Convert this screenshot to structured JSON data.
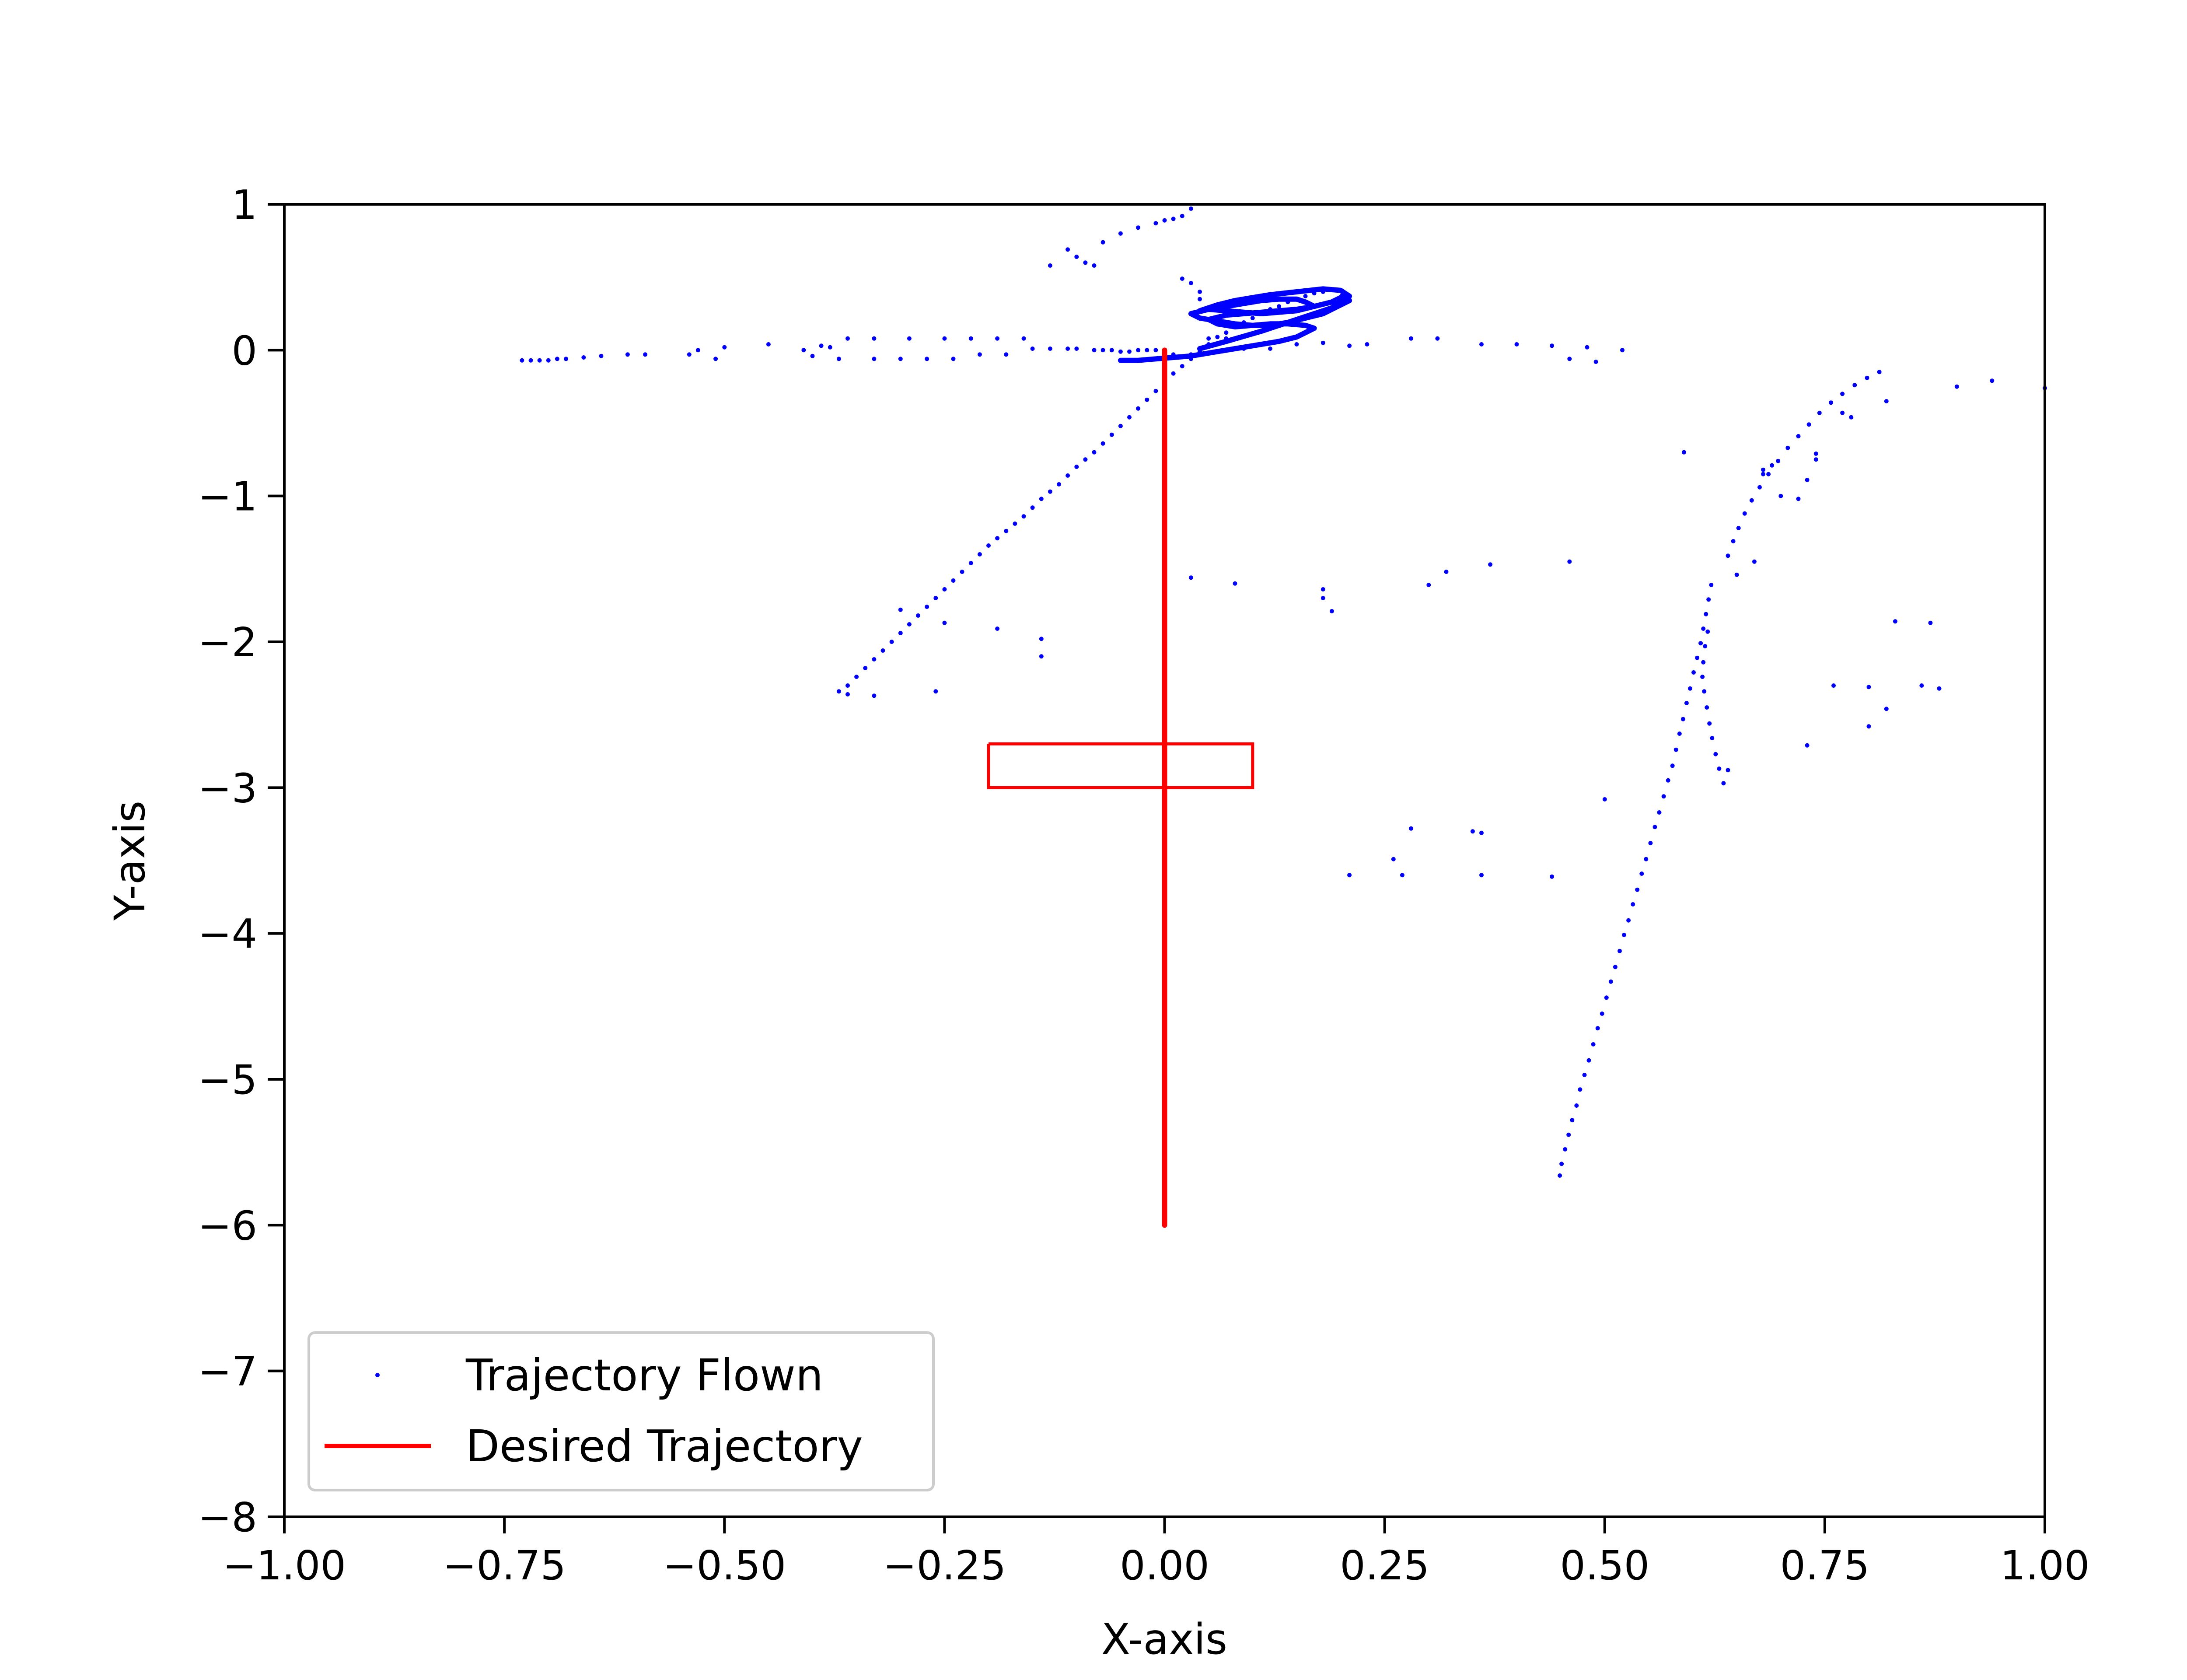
{
  "chart_data": {
    "type": "scatter",
    "xlabel": "X-axis",
    "ylabel": "Y-axis",
    "xlim": [
      -1.0,
      1.0
    ],
    "ylim": [
      -8,
      1
    ],
    "xticks": [
      -1.0,
      -0.75,
      -0.5,
      -0.25,
      0.0,
      0.25,
      0.5,
      0.75,
      1.0
    ],
    "xtick_labels": [
      "−1.00",
      "−0.75",
      "−0.50",
      "−0.25",
      "0.00",
      "0.25",
      "0.50",
      "0.75",
      "1.00"
    ],
    "yticks": [
      1,
      0,
      -1,
      -2,
      -3,
      -4,
      -5,
      -6,
      -7,
      -8
    ],
    "ytick_labels": [
      "1",
      "0",
      "−1",
      "−2",
      "−3",
      "−4",
      "−5",
      "−6",
      "−7",
      "−8"
    ],
    "grid": false,
    "legend": {
      "position": "lower-left",
      "entries": [
        "Trajectory Flown",
        "Desired Trajectory"
      ]
    },
    "series": [
      {
        "name": "Trajectory Flown",
        "style": "points",
        "color": "#0000ff",
        "x": [
          -0.73,
          -0.72,
          -0.71,
          -0.7,
          -0.69,
          -0.68,
          -0.66,
          -0.64,
          -0.61,
          -0.59,
          -0.54,
          -0.53,
          -0.51,
          -0.5,
          -0.45,
          -0.41,
          -0.4,
          -0.39,
          -0.38,
          -0.37,
          -0.36,
          -0.33,
          -0.33,
          -0.3,
          -0.29,
          -0.27,
          -0.25,
          -0.24,
          -0.22,
          -0.21,
          -0.19,
          -0.18,
          -0.16,
          -0.15,
          -0.13,
          -0.11,
          -0.1,
          -0.08,
          -0.07,
          -0.06,
          -0.05,
          -0.04,
          -0.03,
          -0.02,
          -0.01,
          0.0,
          0.01,
          0.03,
          0.05,
          0.07,
          0.09,
          0.12,
          0.15,
          0.18,
          0.21,
          0.23,
          0.28,
          0.31,
          0.36,
          0.4,
          0.44,
          0.46,
          0.48,
          0.49,
          0.52,
          -0.13,
          -0.11,
          -0.1,
          -0.09,
          -0.08,
          -0.07,
          -0.05,
          -0.03,
          -0.01,
          0.0,
          0.01,
          0.02,
          0.03,
          0.02,
          0.03,
          0.04,
          0.04,
          -0.37,
          -0.36,
          -0.35,
          -0.34,
          -0.33,
          -0.32,
          -0.31,
          -0.3,
          -0.29,
          -0.28,
          -0.27,
          -0.26,
          -0.25,
          -0.24,
          -0.23,
          -0.22,
          -0.21,
          -0.2,
          -0.19,
          -0.18,
          -0.17,
          -0.16,
          -0.15,
          -0.14,
          -0.13,
          -0.12,
          -0.11,
          -0.1,
          -0.09,
          -0.08,
          -0.07,
          -0.06,
          -0.05,
          -0.04,
          -0.03,
          -0.02,
          -0.01,
          0.0,
          0.01,
          0.02,
          0.03,
          0.04,
          0.05,
          0.06,
          0.07,
          0.08,
          0.09,
          0.1,
          0.11,
          0.12,
          0.13,
          0.14,
          0.15,
          0.16,
          0.17,
          0.18,
          -0.3,
          -0.25,
          -0.19,
          -0.14,
          -0.14,
          -0.33,
          -0.26,
          -0.36,
          0.03,
          0.08,
          0.18,
          0.18,
          0.19,
          0.3,
          0.32,
          0.37,
          0.46,
          0.21,
          0.26,
          0.27,
          0.28,
          0.35,
          0.36,
          0.36,
          0.44,
          0.5,
          0.59,
          0.64,
          0.65,
          0.67,
          0.68,
          0.68,
          0.69,
          0.7,
          0.72,
          0.73,
          0.74,
          0.74,
          0.77,
          0.78,
          0.82,
          0.9,
          0.94,
          1.0,
          0.73,
          0.76,
          0.8,
          0.8,
          0.82,
          0.83,
          0.86,
          0.87,
          0.88,
          0.449,
          0.451,
          0.455,
          0.459,
          0.463,
          0.468,
          0.472,
          0.477,
          0.482,
          0.487,
          0.492,
          0.497,
          0.502,
          0.507,
          0.512,
          0.517,
          0.522,
          0.527,
          0.532,
          0.537,
          0.542,
          0.547,
          0.552,
          0.557,
          0.562,
          0.567,
          0.572,
          0.577,
          0.581,
          0.585,
          0.589,
          0.593,
          0.597,
          0.601,
          0.605,
          0.609,
          0.612,
          0.615,
          0.618,
          0.621,
          0.617,
          0.614,
          0.612,
          0.611,
          0.613,
          0.616,
          0.619,
          0.622,
          0.626,
          0.63,
          0.635,
          0.64,
          0.646,
          0.652,
          0.659,
          0.667,
          0.676,
          0.686,
          0.697,
          0.708,
          0.72,
          0.732,
          0.744,
          0.757,
          0.77,
          0.784,
          0.798,
          0.812
        ],
        "y": [
          -0.07,
          -0.07,
          -0.07,
          -0.07,
          -0.06,
          -0.06,
          -0.05,
          -0.04,
          -0.03,
          -0.03,
          -0.03,
          0.0,
          -0.06,
          0.02,
          0.04,
          0.0,
          -0.04,
          0.03,
          0.02,
          -0.06,
          0.08,
          -0.06,
          0.08,
          -0.06,
          0.08,
          -0.06,
          0.08,
          -0.06,
          0.08,
          -0.03,
          0.08,
          -0.03,
          0.08,
          0.01,
          0.01,
          0.01,
          0.01,
          0.0,
          0.0,
          0.0,
          -0.01,
          -0.01,
          0.0,
          0.0,
          0.0,
          0.0,
          -0.03,
          -0.03,
          0.08,
          0.08,
          0.01,
          0.01,
          0.04,
          0.05,
          0.03,
          0.04,
          0.08,
          0.08,
          0.04,
          0.04,
          0.03,
          -0.06,
          0.02,
          -0.08,
          0.0,
          0.58,
          0.69,
          0.64,
          0.6,
          0.58,
          0.74,
          0.8,
          0.84,
          0.87,
          0.89,
          0.9,
          0.92,
          0.97,
          0.49,
          0.46,
          0.4,
          0.35,
          -2.34,
          -2.3,
          -2.24,
          -2.18,
          -2.12,
          -2.06,
          -2.0,
          -1.94,
          -1.88,
          -1.82,
          -1.76,
          -1.7,
          -1.64,
          -1.58,
          -1.52,
          -1.46,
          -1.4,
          -1.34,
          -1.29,
          -1.24,
          -1.19,
          -1.14,
          -1.08,
          -1.02,
          -0.97,
          -0.92,
          -0.86,
          -0.8,
          -0.75,
          -0.7,
          -0.64,
          -0.58,
          -0.52,
          -0.46,
          -0.4,
          -0.34,
          -0.28,
          -0.22,
          -0.16,
          -0.11,
          -0.06,
          -0.01,
          0.04,
          0.09,
          0.12,
          0.16,
          0.19,
          0.22,
          0.25,
          0.28,
          0.3,
          0.33,
          0.35,
          0.37,
          0.39,
          0.4,
          -1.78,
          -1.87,
          -1.91,
          -1.98,
          -2.1,
          -2.37,
          -2.34,
          -2.36,
          -1.56,
          -1.6,
          -1.64,
          -1.7,
          -1.79,
          -1.61,
          -1.52,
          -1.47,
          -1.45,
          -3.6,
          -3.49,
          -3.6,
          -3.28,
          -3.3,
          -3.31,
          -3.6,
          -3.61,
          -3.08,
          -0.7,
          -2.88,
          -1.54,
          -1.45,
          -0.82,
          -0.85,
          -0.79,
          -1.0,
          -1.02,
          -0.89,
          -0.75,
          -0.71,
          -0.43,
          -0.46,
          -0.35,
          -0.25,
          -0.21,
          -0.26,
          -2.71,
          -2.3,
          -2.31,
          -2.58,
          -2.46,
          -1.86,
          -2.3,
          -1.87,
          -2.32,
          -5.66,
          -5.58,
          -5.48,
          -5.38,
          -5.28,
          -5.18,
          -5.07,
          -4.97,
          -4.87,
          -4.76,
          -4.65,
          -4.55,
          -4.44,
          -4.33,
          -4.23,
          -4.12,
          -4.01,
          -3.91,
          -3.8,
          -3.7,
          -3.59,
          -3.49,
          -3.38,
          -3.27,
          -3.17,
          -3.06,
          -2.95,
          -2.85,
          -2.74,
          -2.63,
          -2.53,
          -2.42,
          -2.32,
          -2.21,
          -2.11,
          -2.01,
          -1.91,
          -1.81,
          -1.71,
          -1.61,
          -1.93,
          -2.03,
          -2.14,
          -2.24,
          -2.34,
          -2.45,
          -2.56,
          -2.66,
          -2.77,
          -2.87,
          -2.97,
          -1.41,
          -1.31,
          -1.22,
          -1.12,
          -1.03,
          -0.94,
          -0.85,
          -0.76,
          -0.67,
          -0.59,
          -0.51,
          -0.43,
          -0.36,
          -0.3,
          -0.24,
          -0.19,
          -0.15
        ]
      },
      {
        "name": "Trajectory Flown",
        "style": "dense-loop",
        "color": "#0000ff",
        "x": [
          -0.05,
          -0.03,
          -0.01,
          0.01,
          0.03,
          0.05,
          0.07,
          0.09,
          0.11,
          0.13,
          0.15,
          0.16,
          0.17,
          0.16,
          0.14,
          0.12,
          0.1,
          0.08,
          0.06,
          0.05,
          0.07,
          0.09,
          0.11,
          0.13,
          0.15,
          0.17,
          0.19,
          0.2,
          0.205,
          0.21,
          0.2,
          0.19,
          0.18,
          0.16,
          0.14,
          0.12,
          0.1,
          0.08,
          0.06,
          0.04,
          0.03,
          0.05,
          0.07,
          0.09,
          0.11,
          0.13,
          0.15,
          0.16,
          0.17,
          0.15,
          0.13,
          0.11,
          0.09,
          0.07,
          0.05,
          0.04,
          0.06,
          0.08,
          0.1,
          0.12,
          0.15,
          0.18,
          0.2,
          0.21,
          0.19,
          0.15,
          0.11,
          0.07,
          0.04
        ],
        "y": [
          -0.07,
          -0.07,
          -0.06,
          -0.05,
          -0.04,
          -0.02,
          0.0,
          0.02,
          0.04,
          0.06,
          0.09,
          0.12,
          0.15,
          0.17,
          0.18,
          0.18,
          0.17,
          0.16,
          0.18,
          0.21,
          0.24,
          0.25,
          0.26,
          0.27,
          0.28,
          0.3,
          0.33,
          0.36,
          0.39,
          0.34,
          0.31,
          0.28,
          0.25,
          0.22,
          0.19,
          0.17,
          0.17,
          0.18,
          0.2,
          0.22,
          0.25,
          0.28,
          0.3,
          0.32,
          0.34,
          0.35,
          0.35,
          0.33,
          0.3,
          0.27,
          0.26,
          0.25,
          0.26,
          0.27,
          0.28,
          0.27,
          0.31,
          0.34,
          0.36,
          0.38,
          0.4,
          0.42,
          0.41,
          0.37,
          0.29,
          0.21,
          0.13,
          0.06,
          0.01
        ]
      },
      {
        "name": "Desired Trajectory",
        "style": "line",
        "color": "#ff0000",
        "x": [
          0.0,
          0.0
        ],
        "y": [
          0.0,
          -6.0
        ]
      },
      {
        "name": "Desired Trajectory",
        "style": "rectangle",
        "color": "#ff0000",
        "x": [
          -0.2,
          0.1,
          0.1,
          -0.2,
          -0.2
        ],
        "y": [
          -2.7,
          -2.7,
          -3.0,
          -3.0,
          -2.7
        ]
      }
    ]
  }
}
